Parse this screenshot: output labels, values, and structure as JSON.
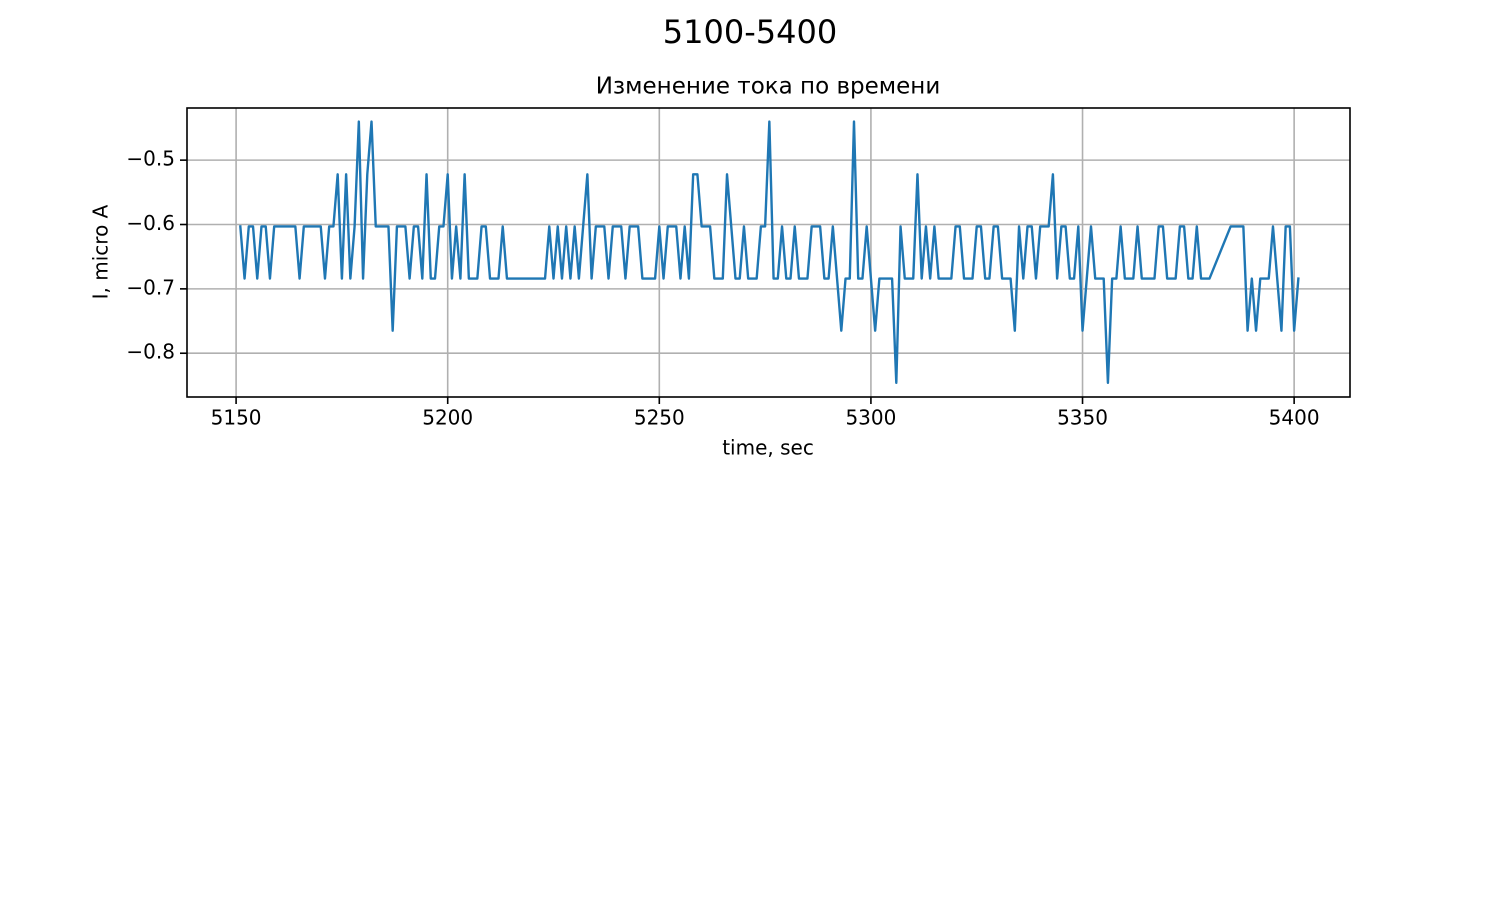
{
  "chart_data": {
    "type": "line",
    "suptitle": "5100-5400",
    "title": "Изменение тока по времени",
    "x_label": "time, sec",
    "y_label": "I, micro A",
    "grid": true,
    "xlim": [
      5138.4,
      5413.2
    ],
    "ylim": [
      -0.868,
      -0.419
    ],
    "xticks": [
      5150,
      5200,
      5250,
      5300,
      5350,
      5400
    ],
    "yticks": [
      {
        "value": -0.5,
        "label": "−0.5"
      },
      {
        "value": -0.6,
        "label": "−0.6"
      },
      {
        "value": -0.7,
        "label": "−0.7"
      },
      {
        "value": -0.8,
        "label": "−0.8"
      }
    ],
    "series": [
      {
        "color": "#1f77b4",
        "x": [
          5151,
          5152,
          5153,
          5154,
          5155,
          5156,
          5157,
          5158,
          5159,
          5160,
          5161,
          5162,
          5163,
          5164,
          5165,
          5166,
          5167,
          5168,
          5169,
          5170,
          5171,
          5172,
          5173,
          5174,
          5175,
          5176,
          5177,
          5178,
          5179,
          5180,
          5181,
          5182,
          5183,
          5184,
          5185,
          5186,
          5187,
          5188,
          5189,
          5190,
          5191,
          5192,
          5193,
          5194,
          5195,
          5196,
          5197,
          5198,
          5199,
          5200,
          5201,
          5202,
          5203,
          5204,
          5205,
          5206,
          5207,
          5208,
          5209,
          5210,
          5211,
          5212,
          5213,
          5214,
          5215,
          5216,
          5217,
          5218,
          5219,
          5220,
          5221,
          5222,
          5223,
          5224,
          5225,
          5226,
          5227,
          5228,
          5229,
          5230,
          5231,
          5232,
          5233,
          5234,
          5235,
          5236,
          5237,
          5238,
          5239,
          5240,
          5241,
          5242,
          5243,
          5244,
          5245,
          5246,
          5247,
          5248,
          5249,
          5250,
          5251,
          5252,
          5253,
          5254,
          5255,
          5256,
          5257,
          5258,
          5259,
          5260,
          5261,
          5262,
          5263,
          5264,
          5265,
          5266,
          5267,
          5268,
          5269,
          5270,
          5271,
          5272,
          5273,
          5274,
          5275,
          5276,
          5277,
          5278,
          5279,
          5280,
          5281,
          5282,
          5283,
          5284,
          5285,
          5286,
          5287,
          5288,
          5289,
          5290,
          5291,
          5292,
          5293,
          5294,
          5295,
          5296,
          5297,
          5298,
          5299,
          5300,
          5301,
          5302,
          5303,
          5304,
          5305,
          5306,
          5307,
          5308,
          5309,
          5310,
          5311,
          5312,
          5313,
          5314,
          5315,
          5316,
          5317,
          5318,
          5319,
          5320,
          5321,
          5322,
          5323,
          5324,
          5325,
          5326,
          5327,
          5328,
          5329,
          5330,
          5331,
          5332,
          5333,
          5334,
          5335,
          5336,
          5337,
          5338,
          5339,
          5340,
          5341,
          5342,
          5343,
          5344,
          5345,
          5346,
          5347,
          5348,
          5349,
          5350,
          5351,
          5352,
          5353,
          5354,
          5355,
          5356,
          5357,
          5358,
          5359,
          5360,
          5361,
          5362,
          5363,
          5364,
          5365,
          5366,
          5367,
          5368,
          5369,
          5370,
          5371,
          5372,
          5373,
          5374,
          5375,
          5376,
          5377,
          5378,
          5379,
          5380,
          5385,
          5386,
          5387,
          5388,
          5389,
          5390,
          5391,
          5392,
          5393,
          5394,
          5395,
          5396,
          5397,
          5398,
          5399,
          5400,
          5401
        ],
        "values": [
          -0.603,
          -0.684,
          -0.603,
          -0.603,
          -0.684,
          -0.603,
          -0.603,
          -0.684,
          -0.603,
          -0.603,
          -0.603,
          -0.603,
          -0.603,
          -0.603,
          -0.684,
          -0.603,
          -0.603,
          -0.603,
          -0.603,
          -0.603,
          -0.684,
          -0.603,
          -0.603,
          -0.522,
          -0.684,
          -0.522,
          -0.684,
          -0.603,
          -0.44,
          -0.684,
          -0.522,
          -0.44,
          -0.603,
          -0.603,
          -0.603,
          -0.603,
          -0.765,
          -0.603,
          -0.603,
          -0.603,
          -0.684,
          -0.603,
          -0.603,
          -0.684,
          -0.522,
          -0.684,
          -0.684,
          -0.603,
          -0.603,
          -0.522,
          -0.684,
          -0.603,
          -0.684,
          -0.522,
          -0.684,
          -0.684,
          -0.684,
          -0.603,
          -0.603,
          -0.684,
          -0.684,
          -0.684,
          -0.603,
          -0.684,
          -0.684,
          -0.684,
          -0.684,
          -0.684,
          -0.684,
          -0.684,
          -0.684,
          -0.684,
          -0.684,
          -0.603,
          -0.684,
          -0.603,
          -0.684,
          -0.603,
          -0.684,
          -0.603,
          -0.684,
          -0.603,
          -0.522,
          -0.684,
          -0.603,
          -0.603,
          -0.603,
          -0.684,
          -0.603,
          -0.603,
          -0.603,
          -0.684,
          -0.603,
          -0.603,
          -0.603,
          -0.684,
          -0.684,
          -0.684,
          -0.684,
          -0.603,
          -0.684,
          -0.603,
          -0.603,
          -0.603,
          -0.684,
          -0.603,
          -0.684,
          -0.522,
          -0.522,
          -0.603,
          -0.603,
          -0.603,
          -0.684,
          -0.684,
          -0.684,
          -0.522,
          -0.603,
          -0.684,
          -0.684,
          -0.603,
          -0.684,
          -0.684,
          -0.684,
          -0.603,
          -0.603,
          -0.44,
          -0.684,
          -0.684,
          -0.603,
          -0.684,
          -0.684,
          -0.603,
          -0.684,
          -0.684,
          -0.684,
          -0.603,
          -0.603,
          -0.603,
          -0.684,
          -0.684,
          -0.603,
          -0.684,
          -0.765,
          -0.684,
          -0.684,
          -0.44,
          -0.684,
          -0.684,
          -0.603,
          -0.684,
          -0.765,
          -0.684,
          -0.684,
          -0.684,
          -0.684,
          -0.846,
          -0.603,
          -0.684,
          -0.684,
          -0.684,
          -0.522,
          -0.684,
          -0.603,
          -0.684,
          -0.603,
          -0.684,
          -0.684,
          -0.684,
          -0.684,
          -0.603,
          -0.603,
          -0.684,
          -0.684,
          -0.684,
          -0.603,
          -0.603,
          -0.684,
          -0.684,
          -0.603,
          -0.603,
          -0.684,
          -0.684,
          -0.684,
          -0.765,
          -0.603,
          -0.684,
          -0.603,
          -0.603,
          -0.684,
          -0.603,
          -0.603,
          -0.603,
          -0.522,
          -0.684,
          -0.603,
          -0.603,
          -0.684,
          -0.684,
          -0.603,
          -0.765,
          -0.684,
          -0.603,
          -0.684,
          -0.684,
          -0.684,
          -0.846,
          -0.684,
          -0.684,
          -0.603,
          -0.684,
          -0.684,
          -0.684,
          -0.603,
          -0.684,
          -0.684,
          -0.684,
          -0.684,
          -0.603,
          -0.603,
          -0.684,
          -0.684,
          -0.684,
          -0.603,
          -0.603,
          -0.684,
          -0.684,
          -0.603,
          -0.684,
          -0.684,
          -0.684,
          -0.603,
          -0.603,
          -0.603,
          -0.603,
          -0.765,
          -0.684,
          -0.765,
          -0.684,
          -0.684,
          -0.684,
          -0.603,
          -0.684,
          -0.765,
          -0.603,
          -0.603,
          -0.765,
          -0.684
        ]
      }
    ]
  }
}
